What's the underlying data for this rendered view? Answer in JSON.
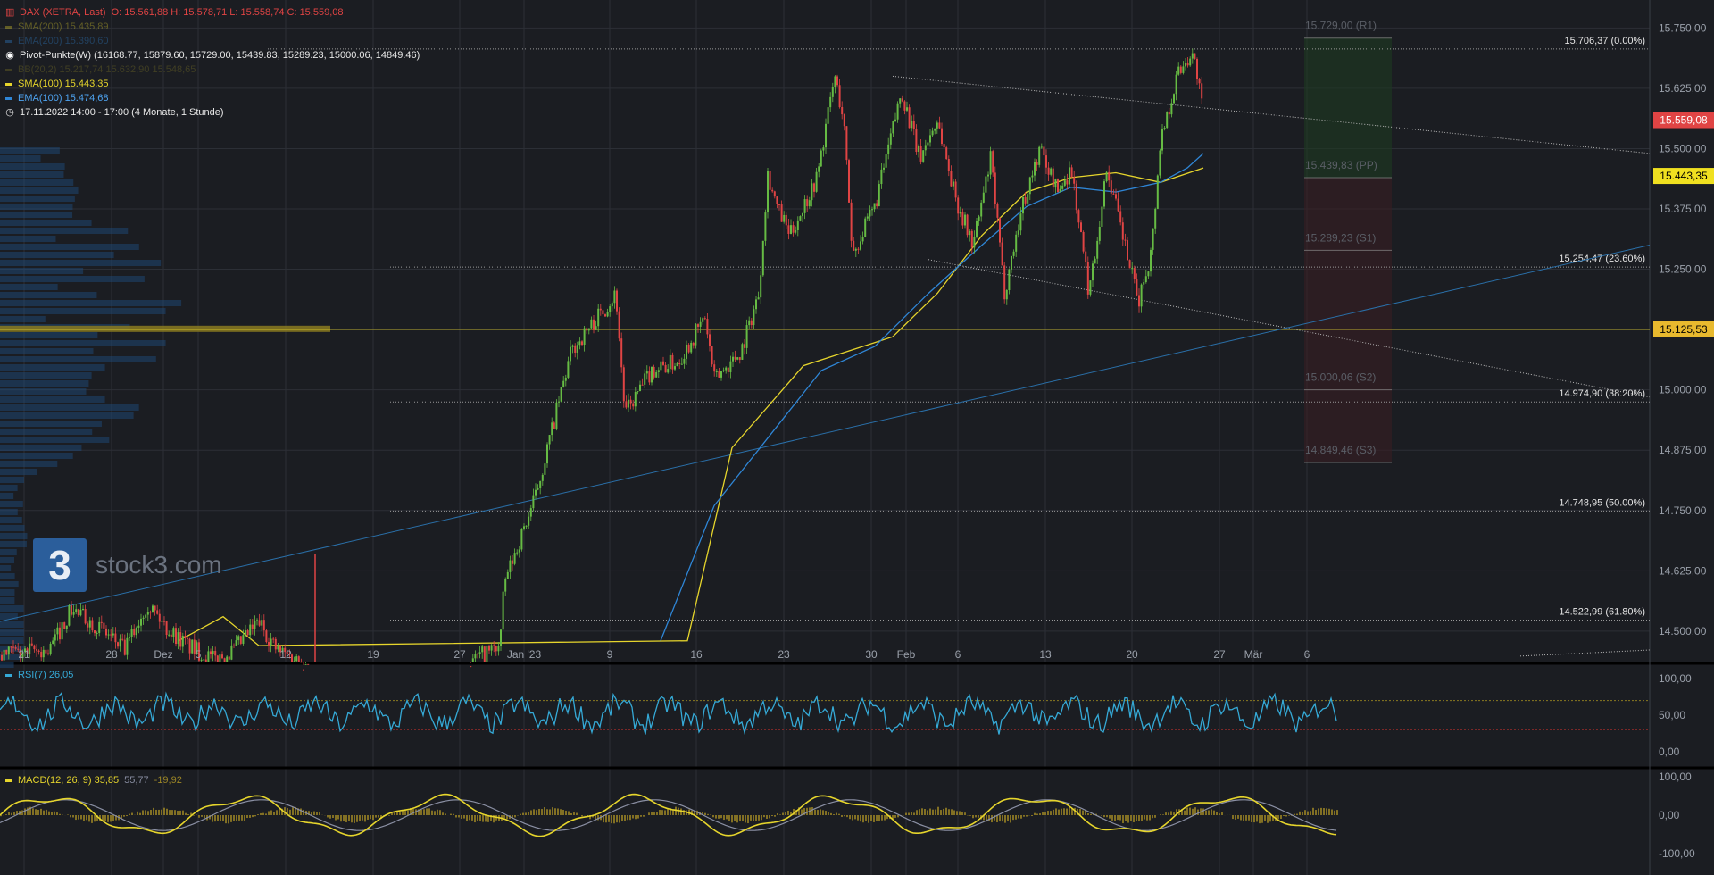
{
  "header": {
    "instrument": "DAX (XETRA, Last)",
    "ohlc": "O: 15.561,88  H: 15.578,71  L: 15.558,74  C: 15.559,08",
    "sma200": "SMA(200)  15.435,89",
    "ema200": "EMA(200)  15.390,60",
    "pivot": "Pivot-Punkte(W)  (16168.77,  15879.60,  15729.00,  15439.83,  15289.23,  15000.06,  14849.46)",
    "bbands": "BB(20,2)  15.217,74  15.632,90  15.548,65",
    "sma100": "SMA(100)  15.443,35",
    "ema100": "EMA(100)  15.474,68",
    "range": "17.11.2022 14:00 - 17:00   (4 Monate, 1 Stunde)"
  },
  "colors": {
    "background": "#1b1d22",
    "grid": "#2c2f36",
    "up": "#66bb44",
    "down": "#e04444",
    "sma": "#e6d52c",
    "ema": "#2f86d6",
    "rsi": "#35a9d6",
    "macd": "#e6d52c",
    "signal": "#8a8fa3",
    "hist": "#9c8626",
    "price_tag": "#e04444",
    "sma_tag": "#f0e020",
    "level_tag": "#e8b92e"
  },
  "logo": {
    "mark": "3",
    "text": "stock3.com"
  },
  "rsi_panel": {
    "label": "RSI(7)  26,05",
    "ticks": [
      "100,00",
      "50,00",
      "0,00"
    ]
  },
  "macd_panel": {
    "label": "MACD(12, 26, 9)  35,85",
    "signal": "55,77",
    "hist": "-19,92",
    "ticks": [
      "100,00",
      "0,00",
      "-100,00"
    ]
  },
  "chart_data": {
    "type": "candlestick",
    "y_axis_ticks": [
      15750,
      15625,
      15500,
      15375,
      15250,
      15125,
      15000,
      14875,
      14750,
      14625,
      14500
    ],
    "y_axis_labels": [
      "15.750,00",
      "15.625,00",
      "15.500,00",
      "15.375,00",
      "15.250,00",
      "15.125,00",
      "15.000,00",
      "14.875,00",
      "14.750,00",
      "14.625,00",
      "14.500,00"
    ],
    "ylim": [
      14435,
      15808
    ],
    "x_axis_labels": [
      "21",
      "28",
      "Dez",
      "5",
      "12",
      "19",
      "27",
      "Jan '23",
      "9",
      "16",
      "23",
      "30",
      "Feb",
      "6",
      "13",
      "20",
      "27",
      "Mär",
      "6"
    ],
    "price_tags": [
      {
        "label": "15.559,08",
        "value": 15559.08,
        "kind": "price"
      },
      {
        "label": "15.443,35",
        "value": 15443.35,
        "kind": "sma"
      },
      {
        "label": "15.125,53",
        "value": 15125.53,
        "kind": "level"
      }
    ],
    "fibonacci": [
      {
        "label": "15.706,37 (0.00%)",
        "value": 15706.37
      },
      {
        "label": "15.254,47 (23.60%)",
        "value": 15254.47
      },
      {
        "label": "14.974,90 (38.20%)",
        "value": 14974.9
      },
      {
        "label": "14.748,95 (50.00%)",
        "value": 14748.95
      },
      {
        "label": "14.522,99 (61.80%)",
        "value": 14522.99
      }
    ],
    "pivots": [
      {
        "label": "15.729,00 (R1)",
        "value": 15729.0
      },
      {
        "label": "15.439,83 (PP)",
        "value": 15439.83
      },
      {
        "label": "15.289,23 (S1)",
        "value": 15289.23
      },
      {
        "label": "15.000,06 (S2)",
        "value": 15000.06
      },
      {
        "label": "14.849,46 (S3)",
        "value": 14849.46
      }
    ],
    "horizontal_level": 15125.53,
    "price_path": [
      [
        0,
        14450
      ],
      [
        55,
        14460
      ],
      [
        80,
        14545
      ],
      [
        110,
        14510
      ],
      [
        140,
        14460
      ],
      [
        165,
        14560
      ],
      [
        185,
        14510
      ],
      [
        210,
        14470
      ],
      [
        240,
        14440
      ],
      [
        262,
        14460
      ],
      [
        290,
        14520
      ],
      [
        310,
        14460
      ],
      [
        335,
        14440
      ],
      [
        380,
        14400
      ],
      [
        440,
        14380
      ],
      [
        500,
        14370
      ],
      [
        530,
        14440
      ],
      [
        560,
        14470
      ],
      [
        565,
        14600
      ],
      [
        600,
        14780
      ],
      [
        640,
        15080
      ],
      [
        690,
        15200
      ],
      [
        700,
        14950
      ],
      [
        730,
        15040
      ],
      [
        760,
        15060
      ],
      [
        790,
        15150
      ],
      [
        800,
        15020
      ],
      [
        830,
        15080
      ],
      [
        850,
        15200
      ],
      [
        860,
        15450
      ],
      [
        870,
        15380
      ],
      [
        885,
        15320
      ],
      [
        915,
        15440
      ],
      [
        935,
        15650
      ],
      [
        945,
        15560
      ],
      [
        955,
        15280
      ],
      [
        980,
        15380
      ],
      [
        1010,
        15620
      ],
      [
        1030,
        15480
      ],
      [
        1050,
        15560
      ],
      [
        1070,
        15400
      ],
      [
        1090,
        15300
      ],
      [
        1110,
        15480
      ],
      [
        1125,
        15200
      ],
      [
        1145,
        15380
      ],
      [
        1165,
        15500
      ],
      [
        1185,
        15410
      ],
      [
        1200,
        15460
      ],
      [
        1220,
        15200
      ],
      [
        1240,
        15460
      ],
      [
        1260,
        15300
      ],
      [
        1275,
        15180
      ],
      [
        1290,
        15290
      ],
      [
        1300,
        15520
      ],
      [
        1320,
        15660
      ],
      [
        1335,
        15700
      ],
      [
        1342,
        15650
      ],
      [
        1348,
        15559
      ]
    ],
    "sma100_path": [
      [
        200,
        14480
      ],
      [
        250,
        14530
      ],
      [
        290,
        14470
      ],
      [
        770,
        14480
      ],
      [
        820,
        14880
      ],
      [
        900,
        15050
      ],
      [
        950,
        15080
      ],
      [
        1000,
        15110
      ],
      [
        1050,
        15200
      ],
      [
        1100,
        15320
      ],
      [
        1150,
        15410
      ],
      [
        1200,
        15440
      ],
      [
        1250,
        15450
      ],
      [
        1300,
        15430
      ],
      [
        1348,
        15460
      ]
    ],
    "ema100_path": [
      [
        740,
        14480
      ],
      [
        800,
        14760
      ],
      [
        860,
        14900
      ],
      [
        920,
        15040
      ],
      [
        980,
        15090
      ],
      [
        1040,
        15200
      ],
      [
        1100,
        15300
      ],
      [
        1150,
        15380
      ],
      [
        1200,
        15420
      ],
      [
        1250,
        15410
      ],
      [
        1300,
        15430
      ],
      [
        1330,
        15460
      ],
      [
        1348,
        15490
      ]
    ],
    "trendlines": [
      {
        "from": [
          1000,
          15650
        ],
        "to": [
          1848,
          15490
        ],
        "style": "dotted"
      },
      {
        "from": [
          1040,
          15270
        ],
        "to": [
          1848,
          14985
        ],
        "style": "dotted"
      },
      {
        "from": [
          0,
          14520
        ],
        "to": [
          1848,
          15300
        ],
        "style": "solid-blue"
      }
    ]
  }
}
